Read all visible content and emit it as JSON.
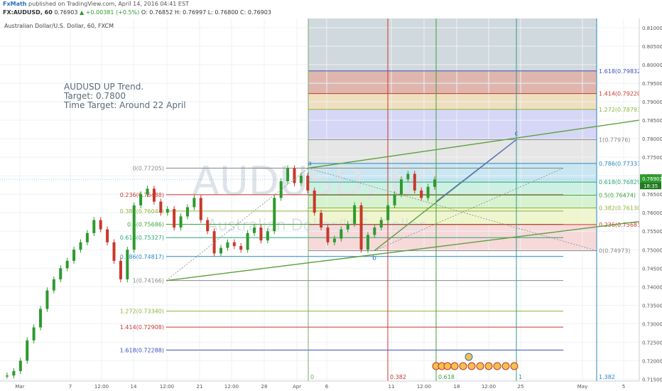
{
  "header": {
    "author": "FxMath",
    "published": " published on TradingView.com, April 14, 2016 04:41 EST",
    "symbol": "FX:AUDUSD, 60",
    "last": "0.76903",
    "change": "+0.00381 (+0.5%)",
    "ohlc": "O: 0.76852 H: 0.76997 L: 0.76800 C: 0.76903"
  },
  "chart_data": {
    "type": "line",
    "title": "Australian Dollar/U.S. Dollar, 60, FXCM",
    "watermark_main": "AUDUSD, 60",
    "watermark_sub": "Australian Dollar/U.S. Dollar",
    "annotation": [
      "AUDUSD UP Trend.",
      "Target: 0.7800",
      "Time Target: Around 22 April"
    ],
    "x_ticks": [
      "Mar",
      "7",
      "12:00",
      "14",
      "12:00",
      "21",
      "12:00",
      "28",
      "Apr",
      "6",
      "11",
      "12:00",
      "18",
      "12:00",
      "25",
      "May",
      "5"
    ],
    "y_ticks": [
      "0.81000",
      "0.80500",
      "0.80000",
      "0.79500",
      "0.79000",
      "0.78500",
      "0.78000",
      "0.77500",
      "0.77000",
      "0.76500",
      "0.76000",
      "0.75500",
      "0.75000",
      "0.74500",
      "0.74000",
      "0.73500",
      "0.73000",
      "0.72500",
      "0.72000",
      "0.71500"
    ],
    "ylim": [
      0.7145,
      0.8125
    ],
    "last_price_label": "0.76903",
    "countdown_label": "18:35",
    "price_series": [
      0.716,
      0.7172,
      0.72,
      0.7255,
      0.729,
      0.734,
      0.739,
      0.742,
      0.745,
      0.747,
      0.75,
      0.752,
      0.7545,
      0.758,
      0.7555,
      0.752,
      0.747,
      0.742,
      0.75,
      0.762,
      0.765,
      0.7665,
      0.763,
      0.76,
      0.761,
      0.756,
      0.759,
      0.7615,
      0.764,
      0.758,
      0.755,
      0.749,
      0.7505,
      0.752,
      0.751,
      0.75,
      0.7545,
      0.756,
      0.7525,
      0.755,
      0.764,
      0.7685,
      0.772,
      0.768,
      0.77,
      0.766,
      0.76,
      0.756,
      0.752,
      0.753,
      0.7555,
      0.757,
      0.762,
      0.75,
      0.754,
      0.756,
      0.758,
      0.762,
      0.765,
      0.769,
      0.7705,
      0.766,
      0.764,
      0.767,
      0.769
    ],
    "fib_retracement": [
      {
        "label": "0(0.77205)",
        "value": 0.77205,
        "color": "#888888"
      },
      {
        "label": "0.236(0.76488)",
        "value": 0.76488,
        "color": "#c8382b"
      },
      {
        "label": "0.382(0.76044)",
        "value": 0.76044,
        "color": "#8db33a"
      },
      {
        "label": "0.5(0.75686)",
        "value": 0.75686,
        "color": "#3aa33a"
      },
      {
        "label": "0.618(0.75327)",
        "value": 0.75327,
        "color": "#29a37a"
      },
      {
        "label": "0.786(0.74817)",
        "value": 0.74817,
        "color": "#2a86c2"
      },
      {
        "label": "1(0.74166)",
        "value": 0.74166,
        "color": "#888888"
      },
      {
        "label": "1.272(0.73340)",
        "value": 0.7334,
        "color": "#8db33a"
      },
      {
        "label": "1.414(0.72908)",
        "value": 0.72908,
        "color": "#c8382b"
      },
      {
        "label": "1.618(0.72288)",
        "value": 0.72288,
        "color": "#3a4fbb"
      }
    ],
    "fib_extension": [
      {
        "label": "1.618(0.79832)",
        "value": 0.79832,
        "color": "#3a4fbb",
        "fill": "#c8d2d8"
      },
      {
        "label": "1.414(0.79220)",
        "value": 0.7922,
        "color": "#c8382b",
        "fill": "#d9a9a0"
      },
      {
        "label": "1.272(0.78793)",
        "value": 0.78793,
        "color": "#8db33a",
        "fill": "#ecd9b4"
      },
      {
        "label": "1(0.77976)",
        "value": 0.77976,
        "color": "#888888",
        "fill": "#cfd0f6"
      },
      {
        "label": "0.786(0.77333)",
        "value": 0.77333,
        "color": "#2a86c2",
        "fill": "#e2e2e2"
      },
      {
        "label": "0.618(0.76829)",
        "value": 0.76829,
        "color": "#29a37a",
        "fill": "#bfe3f0"
      },
      {
        "label": "0.5(0.76474)",
        "value": 0.76474,
        "color": "#3aa33a",
        "fill": "#c3eedd"
      },
      {
        "label": "0.382(0.76130)",
        "value": 0.7613,
        "color": "#8db33a",
        "fill": "#d0f0c8"
      },
      {
        "label": "0.236(0.75681)",
        "value": 0.75681,
        "color": "#c8382b",
        "fill": "#ecf4c4"
      },
      {
        "label": "0(0.74973)",
        "value": 0.74973,
        "color": "#888888",
        "fill": "#f6d2d2"
      }
    ],
    "ext_top_value": 0.8125,
    "time_fib_labels": [
      "0",
      "0.382",
      "0.618",
      "1",
      "1.382"
    ],
    "wave_labels": [
      "a",
      "b",
      "c"
    ],
    "color_up": "#2e9a2e",
    "color_down": "#c8382b"
  }
}
